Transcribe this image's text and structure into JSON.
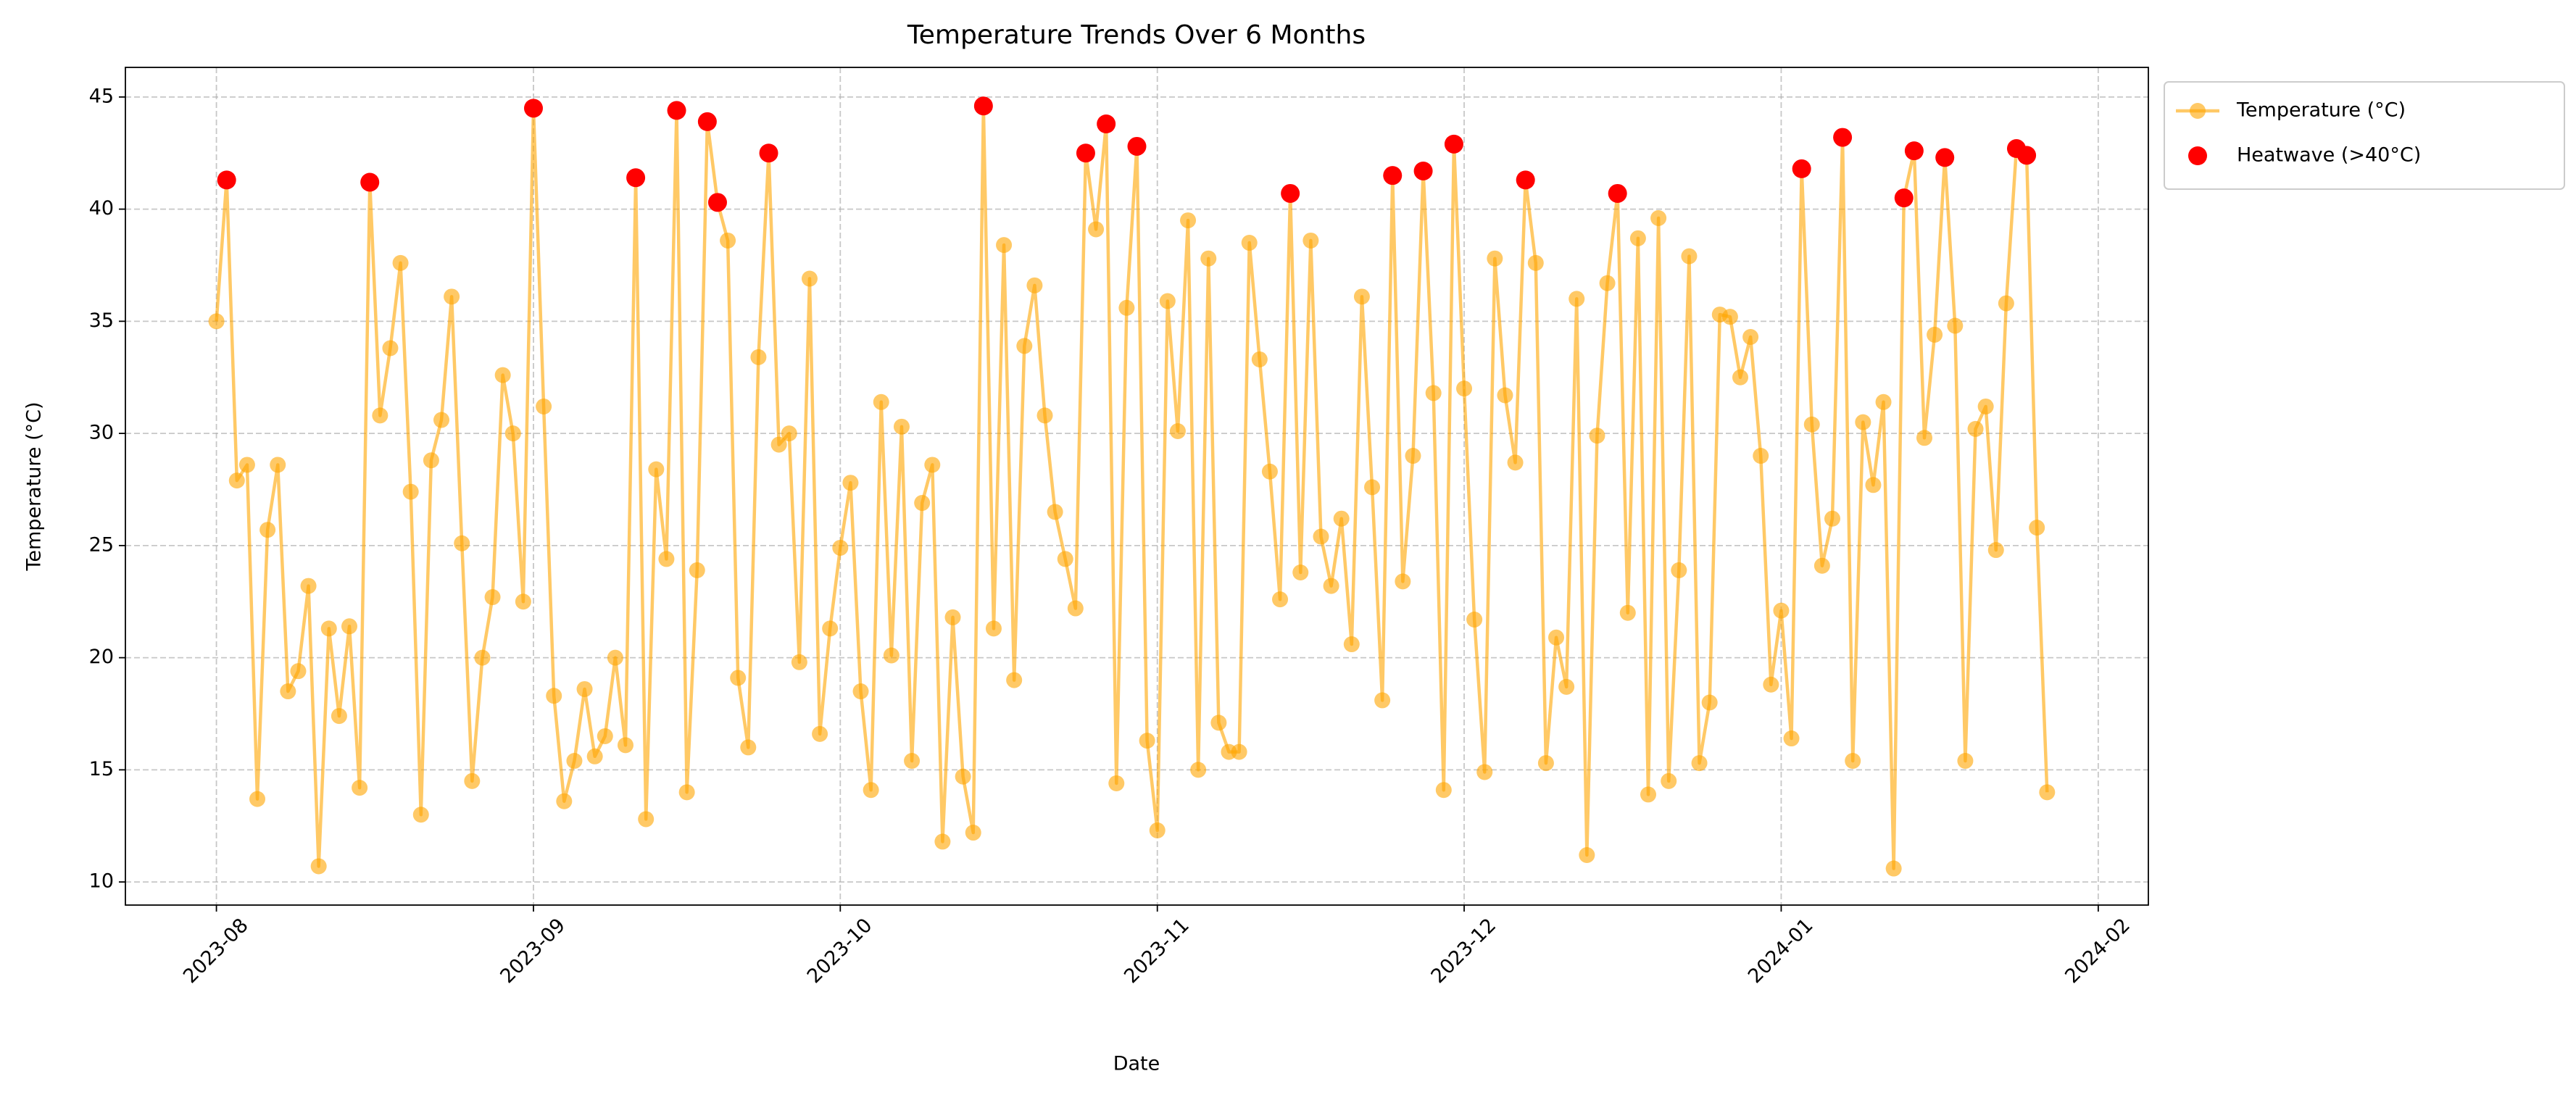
{
  "chart_data": {
    "type": "line",
    "title": "Temperature Trends Over 6 Months",
    "x_label": "Date",
    "y_label": "Temperature (°C)",
    "xlim": [
      -8.9,
      188.9
    ],
    "xticks": [
      {
        "value": 0,
        "label": "2023-08"
      },
      {
        "value": 31,
        "label": "2023-09"
      },
      {
        "value": 61,
        "label": "2023-10"
      },
      {
        "value": 92,
        "label": "2023-11"
      },
      {
        "value": 122,
        "label": "2023-12"
      },
      {
        "value": 153,
        "label": "2024-01"
      },
      {
        "value": 184,
        "label": "2024-02"
      }
    ],
    "ylim": [
      8.97,
      46.32
    ],
    "yticks": [
      10,
      15,
      20,
      25,
      30,
      35,
      40,
      45
    ],
    "grid": true,
    "legend": "outside-upper-right",
    "series": [
      {
        "name": "Temperature (°C)",
        "type": "line",
        "color": "#FFA500",
        "x": [
          0,
          1,
          2,
          3,
          4,
          5,
          6,
          7,
          8,
          9,
          10,
          11,
          12,
          13,
          14,
          15,
          16,
          17,
          18,
          19,
          20,
          21,
          22,
          23,
          24,
          25,
          26,
          27,
          28,
          29,
          30,
          31,
          32,
          33,
          34,
          35,
          36,
          37,
          38,
          39,
          40,
          41,
          42,
          43,
          44,
          45,
          46,
          47,
          48,
          49,
          50,
          51,
          52,
          53,
          54,
          55,
          56,
          57,
          58,
          59,
          60,
          61,
          62,
          63,
          64,
          65,
          66,
          67,
          68,
          69,
          70,
          71,
          72,
          73,
          74,
          75,
          76,
          77,
          78,
          79,
          80,
          81,
          82,
          83,
          84,
          85,
          86,
          87,
          88,
          89,
          90,
          91,
          92,
          93,
          94,
          95,
          96,
          97,
          98,
          99,
          100,
          101,
          102,
          103,
          104,
          105,
          106,
          107,
          108,
          109,
          110,
          111,
          112,
          113,
          114,
          115,
          116,
          117,
          118,
          119,
          120,
          121,
          122,
          123,
          124,
          125,
          126,
          127,
          128,
          129,
          130,
          131,
          132,
          133,
          134,
          135,
          136,
          137,
          138,
          139,
          140,
          141,
          142,
          143,
          144,
          145,
          146,
          147,
          148,
          149,
          150,
          151,
          152,
          153,
          154,
          155,
          156,
          157,
          158,
          159,
          160,
          161,
          162,
          163,
          164,
          165,
          166,
          167,
          168,
          169,
          170,
          171,
          172,
          173,
          174,
          175,
          176,
          177,
          178,
          179
        ],
        "values": [
          35.0,
          41.3,
          27.9,
          28.6,
          13.7,
          25.7,
          28.6,
          18.5,
          19.4,
          23.2,
          10.7,
          21.3,
          17.4,
          21.4,
          14.2,
          41.2,
          30.8,
          33.8,
          37.6,
          27.4,
          13.0,
          28.8,
          30.6,
          36.1,
          25.1,
          14.5,
          20.0,
          22.7,
          32.6,
          30.0,
          22.5,
          44.5,
          31.2,
          18.3,
          13.6,
          15.4,
          18.6,
          15.6,
          16.5,
          20.0,
          16.1,
          41.4,
          12.8,
          28.4,
          24.4,
          44.4,
          14.0,
          23.9,
          43.9,
          40.3,
          38.6,
          19.1,
          16.0,
          33.4,
          42.5,
          29.5,
          30.0,
          19.8,
          36.9,
          16.6,
          21.3,
          24.9,
          27.8,
          18.5,
          14.1,
          31.4,
          20.1,
          30.3,
          15.4,
          26.9,
          28.6,
          11.8,
          21.8,
          14.7,
          12.2,
          44.6,
          21.3,
          38.4,
          19.0,
          33.9,
          36.6,
          30.8,
          26.5,
          24.4,
          22.2,
          42.5,
          39.1,
          43.8,
          14.4,
          35.6,
          42.8,
          16.3,
          12.3,
          35.9,
          30.1,
          39.5,
          15.0,
          37.8,
          17.1,
          15.8,
          15.8,
          38.5,
          33.3,
          28.3,
          22.6,
          40.7,
          23.8,
          38.6,
          25.4,
          23.2,
          26.2,
          20.6,
          36.1,
          27.6,
          18.1,
          41.5,
          23.4,
          29.0,
          41.7,
          31.8,
          14.1,
          42.9,
          32.0,
          21.7,
          14.9,
          37.8,
          31.7,
          28.7,
          41.3,
          37.6,
          15.3,
          20.9,
          18.7,
          36.0,
          11.2,
          29.9,
          36.7,
          40.7,
          22.0,
          38.7,
          13.9,
          39.6,
          14.5,
          23.9,
          37.9,
          15.3,
          18.0,
          35.3,
          35.2,
          32.5,
          34.3,
          29.0,
          18.8,
          22.1,
          16.4,
          41.8,
          30.4,
          24.1,
          26.2,
          43.2,
          15.4,
          30.5,
          27.7,
          31.4,
          10.6,
          40.5,
          42.6,
          29.8,
          34.4,
          42.3,
          34.8,
          15.4,
          30.2,
          31.2,
          24.8,
          35.8,
          42.7,
          42.4,
          25.8,
          14.0
        ]
      },
      {
        "name": "Heatwave (>40°C)",
        "type": "scatter",
        "color": "#FF0000",
        "x": [
          1,
          15,
          31,
          41,
          45,
          48,
          49,
          54,
          75,
          85,
          87,
          90,
          105,
          115,
          118,
          121,
          128,
          137,
          155,
          159,
          165,
          166,
          169,
          176,
          177
        ],
        "values": [
          41.3,
          41.2,
          44.5,
          41.4,
          44.4,
          43.9,
          40.3,
          42.5,
          44.6,
          42.5,
          43.8,
          42.8,
          40.7,
          41.5,
          41.7,
          42.9,
          41.3,
          40.7,
          41.8,
          43.2,
          40.5,
          42.6,
          42.3,
          42.7,
          42.4
        ]
      }
    ]
  }
}
